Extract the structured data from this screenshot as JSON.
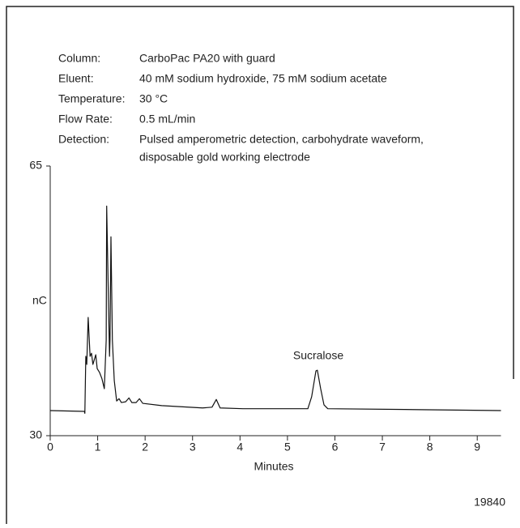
{
  "chart_data": {
    "type": "line",
    "conditions": [
      {
        "label": "Column:",
        "lines": [
          "CarboPac PA20 with guard"
        ]
      },
      {
        "label": "Eluent:",
        "lines": [
          "40 mM sodium hydroxide, 75 mM sodium acetate"
        ]
      },
      {
        "label": "Temperature:",
        "lines": [
          "30 °C"
        ]
      },
      {
        "label": "Flow Rate:",
        "lines": [
          "0.5 mL/min"
        ]
      },
      {
        "label": "Detection:",
        "lines": [
          "Pulsed amperometric detection, carbohydrate waveform,",
          "disposable gold working electrode"
        ]
      }
    ],
    "y_label": "nC",
    "x_label": "Minutes",
    "annotation": "Sucralose",
    "figure_id": "19840",
    "color": "#111111",
    "xlim": [
      0,
      9.5
    ],
    "xticks": [
      0,
      1,
      2,
      3,
      4,
      5,
      6,
      7,
      8,
      9
    ],
    "ylim": [
      30,
      65
    ],
    "yticks": [
      30,
      65
    ],
    "x": [
      0,
      0.72,
      0.73,
      0.75,
      0.77,
      0.8,
      0.84,
      0.87,
      0.9,
      0.96,
      0.99,
      1.04,
      1.09,
      1.14,
      1.18,
      1.19,
      1.23,
      1.25,
      1.26,
      1.28,
      1.31,
      1.35,
      1.4,
      1.45,
      1.5,
      1.59,
      1.66,
      1.72,
      1.81,
      1.88,
      1.95,
      2.35,
      3.21,
      3.41,
      3.5,
      3.58,
      4.06,
      5.43,
      5.51,
      5.6,
      5.63,
      5.7,
      5.77,
      5.85,
      7.47,
      9.5
    ],
    "values": [
      33.26,
      33.15,
      32.9,
      40.3,
      39.25,
      45.35,
      40.3,
      40.7,
      39.25,
      40.5,
      38.7,
      38.2,
      37.4,
      36.1,
      42.4,
      59.8,
      46.6,
      40.3,
      42.4,
      55.8,
      42.4,
      37.15,
      34.5,
      34.8,
      34.3,
      34.4,
      34.9,
      34.3,
      34.3,
      34.8,
      34.2,
      33.9,
      33.6,
      33.7,
      34.7,
      33.6,
      33.5,
      33.5,
      35.05,
      38.4,
      38.5,
      36.1,
      34.0,
      33.5,
      33.4,
      33.26
    ]
  }
}
